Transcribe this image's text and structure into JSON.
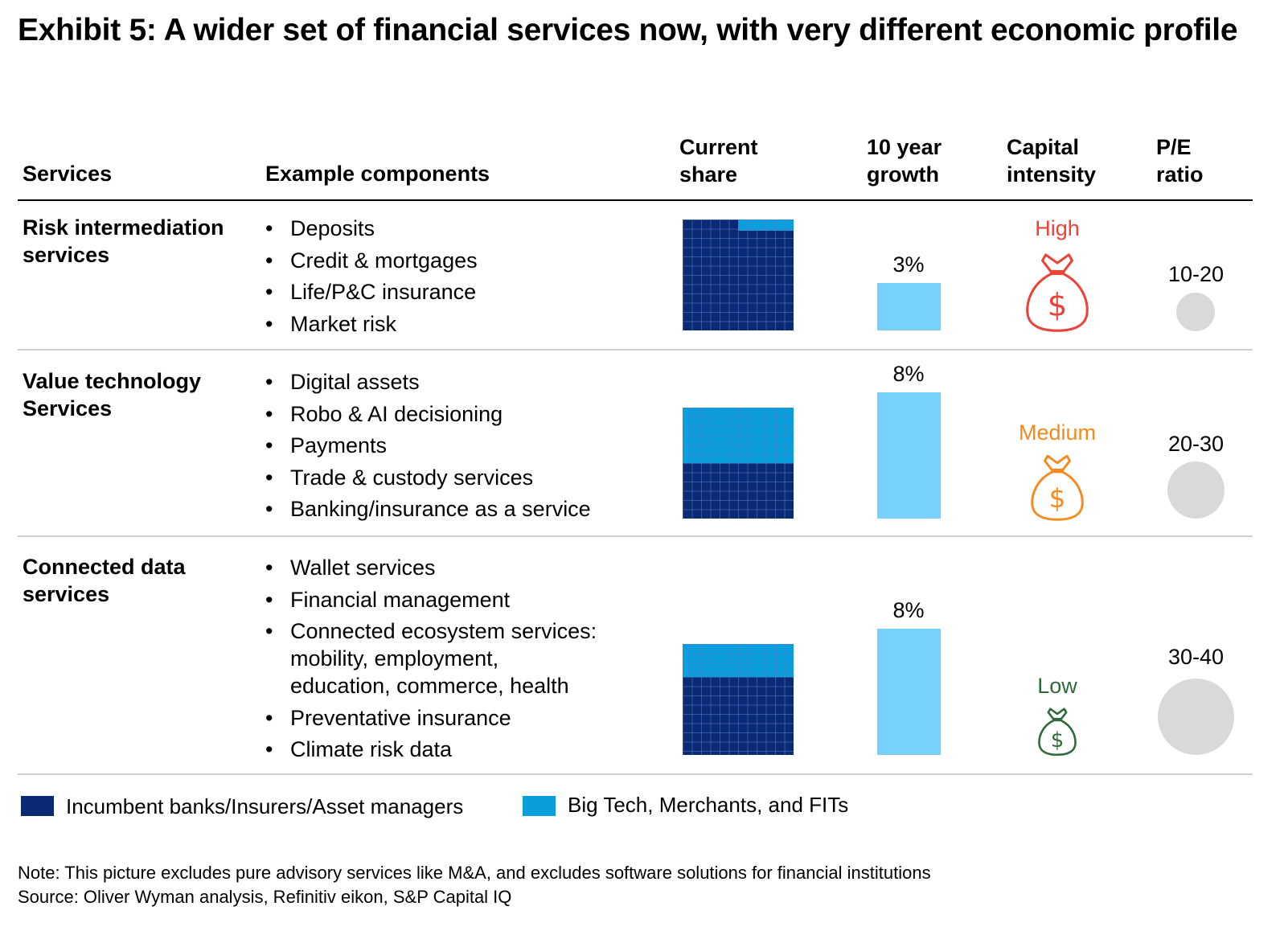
{
  "title": "Exhibit 5: A wider set of financial services now, with very different economic profile",
  "headers": {
    "services": "Services",
    "components": "Example components",
    "share_l1": "Current",
    "share_l2": "share",
    "growth_l1": "10 year",
    "growth_l2": "growth",
    "capital_l1": "Capital",
    "capital_l2": "intensity",
    "pe_l1": "P/E",
    "pe_l2": "ratio"
  },
  "rows": [
    {
      "service_l1": "Risk intermediation",
      "service_l2": "services",
      "components": [
        "Deposits",
        "Credit & mortgages",
        "Life/P&C insurance",
        "Market risk"
      ],
      "growth_label": "3%",
      "capital_label": "High",
      "pe_label": "10-20"
    },
    {
      "service_l1": "Value technology",
      "service_l2": "Services",
      "components": [
        "Digital assets",
        "Robo & AI decisioning",
        "Payments",
        "Trade & custody services",
        "Banking/insurance as a service"
      ],
      "growth_label": "8%",
      "capital_label": "Medium",
      "pe_label": "20-30"
    },
    {
      "service_l1": "Connected data",
      "service_l2": "services",
      "components": [
        "Wallet services",
        "Financial management",
        "Connected ecosystem services:",
        "mobility, employment,",
        "education, commerce, health",
        "Preventative insurance",
        "Climate risk data"
      ],
      "growth_label": "8%",
      "capital_label": "Low",
      "pe_label": "30-40"
    }
  ],
  "legend": {
    "incumbent": "Incumbent banks/Insurers/Asset managers",
    "bigtech": "Big Tech, Merchants, and FITs"
  },
  "note": "Note: This picture excludes pure advisory services like M&A, and excludes software solutions for financial institutions",
  "source": "Source: Oliver Wyman analysis, Refinitiv eikon, S&P Capital IQ",
  "colors": {
    "incumbent": "#0a2a73",
    "bigtech": "#0a9fdc",
    "growth_bar": "#78d1fc",
    "high": "#e8443a",
    "medium": "#f58a1f",
    "low": "#2f6b3a",
    "pe_circle": "#d9d9d9"
  },
  "icons": {
    "capital": "money-bag-icon"
  },
  "chart_data": {
    "type": "table",
    "columns": [
      "Services",
      "Example components",
      "Current share",
      "10 year growth",
      "Capital intensity",
      "P/E ratio"
    ],
    "series": [
      {
        "name": "Incumbent banks/Insurers/Asset managers",
        "values": [
          0.9,
          0.5,
          0.7
        ]
      },
      {
        "name": "Big Tech, Merchants, and FITs",
        "values": [
          0.1,
          0.5,
          0.3
        ]
      }
    ],
    "categories": [
      "Risk intermediation services",
      "Value technology Services",
      "Connected data services"
    ],
    "share_size_relative": [
      1.0,
      1.0,
      1.0
    ],
    "growth_pct": [
      3,
      8,
      8
    ],
    "capital_intensity": [
      "High",
      "Medium",
      "Low"
    ],
    "pe_ratio": [
      "10-20",
      "20-30",
      "30-40"
    ]
  }
}
